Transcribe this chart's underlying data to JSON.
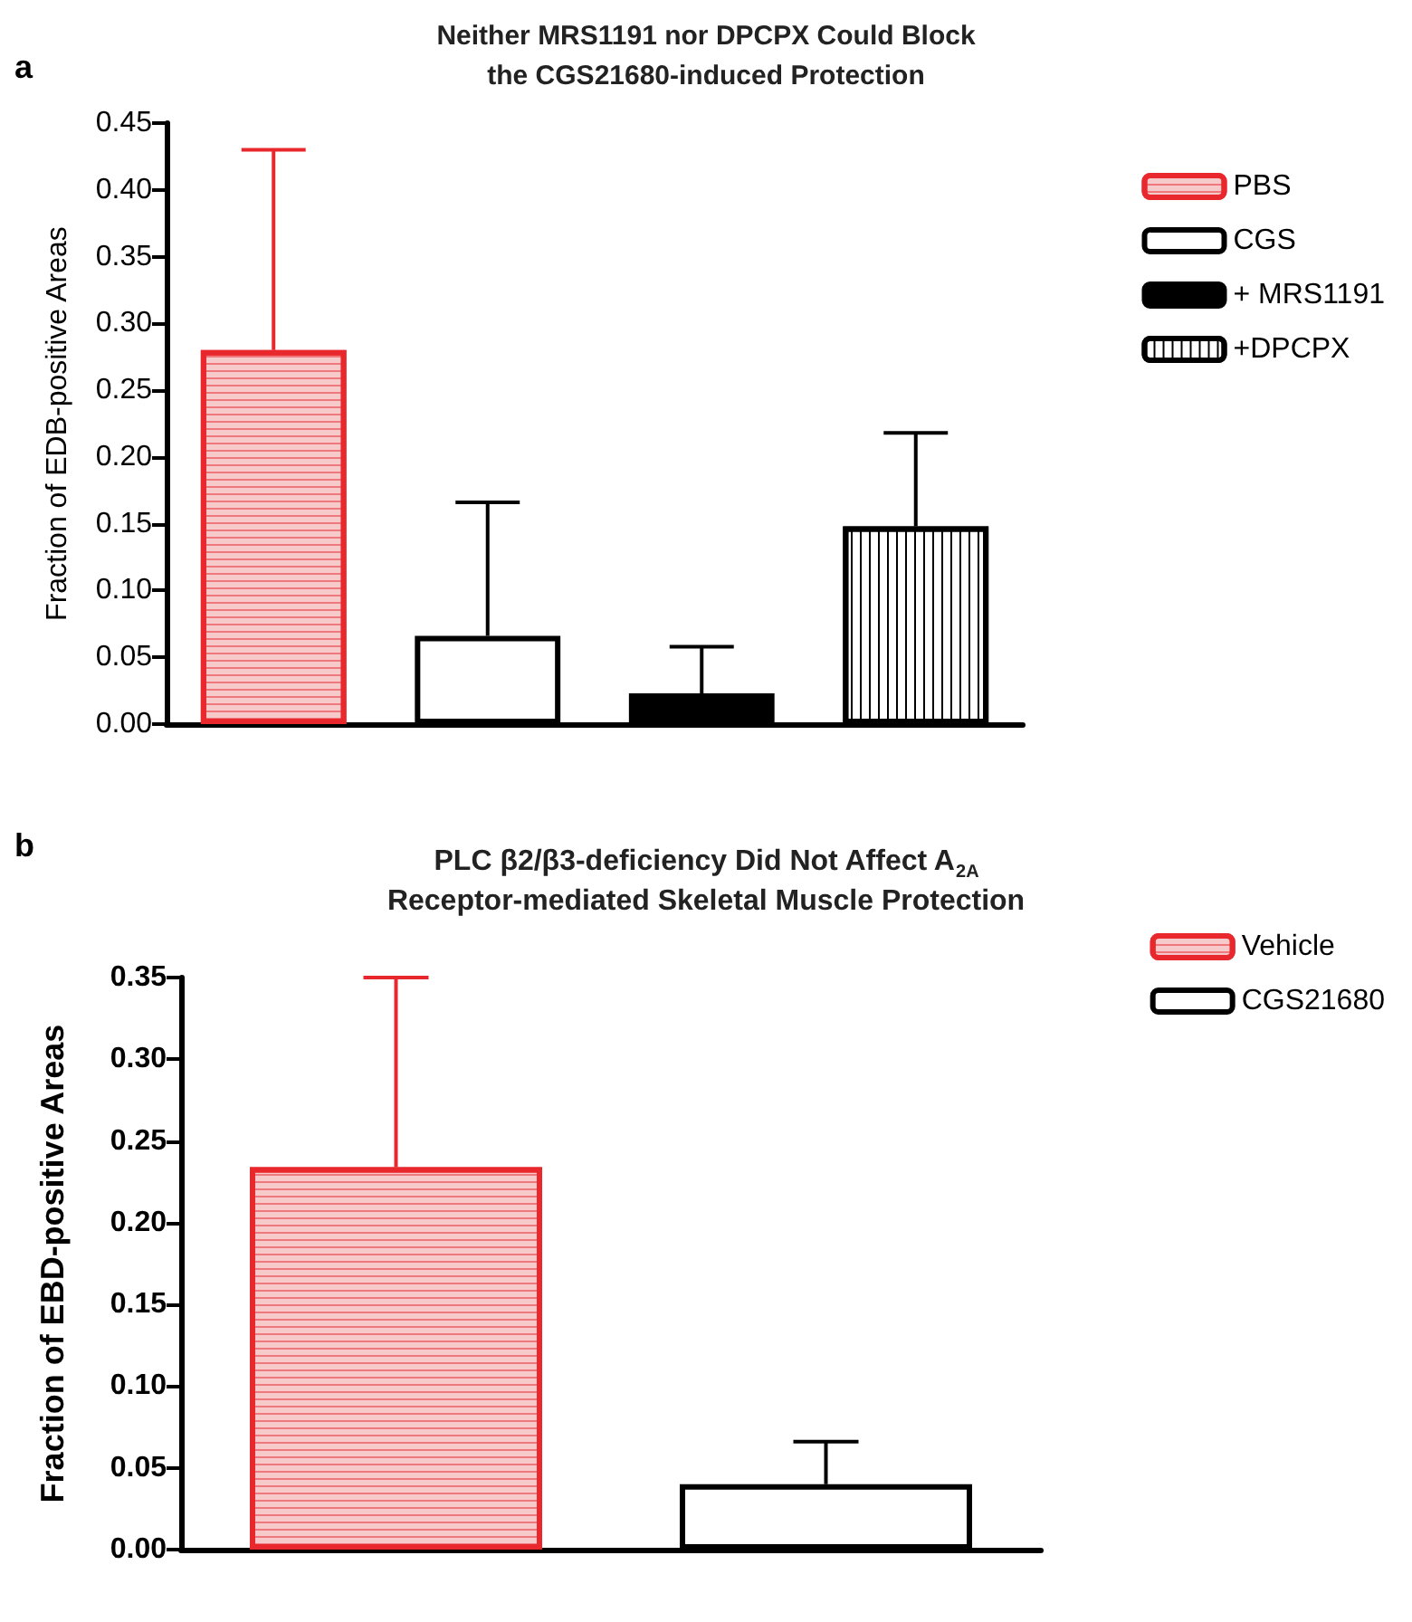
{
  "chart_data": [
    {
      "type": "bar",
      "title": "Neither MRS1191 nor DPCPX Could Block the CGS21680-induced Protection",
      "ylabel": "Fraction of EDB-positive Areas",
      "annotations": [
        "a"
      ],
      "categories": [
        null,
        null,
        null,
        null
      ],
      "series": [
        {
          "name": "PBS",
          "color": "#e8282d",
          "values": [
            0.28,
            null,
            null,
            null
          ],
          "errors": [
            [
              0.28,
              0.43
            ],
            null,
            null,
            null
          ]
        },
        {
          "name": "CGS",
          "color": "#000000",
          "values": [
            null,
            0.066,
            null,
            null
          ],
          "errors": [
            null,
            [
              0.066,
              0.166
            ],
            null,
            null
          ]
        },
        {
          "name": "+ MRS1191",
          "color": "#000000",
          "values": [
            null,
            null,
            0.023,
            null
          ],
          "errors": [
            null,
            null,
            [
              0.023,
              0.058
            ],
            null
          ]
        },
        {
          "name": "+DPCPX",
          "color": "#000000",
          "values": [
            null,
            null,
            null,
            0.148
          ],
          "errors": [
            null,
            null,
            null,
            [
              0.148,
              0.218
            ]
          ]
        }
      ],
      "ylim": [
        0,
        0.45
      ],
      "yticks": [
        {
          "value": 0,
          "label": "0.00"
        },
        {
          "value": 0.05,
          "label": "0.05"
        },
        {
          "value": 0.1,
          "label": "0.10"
        },
        {
          "value": 0.15,
          "label": "0.15"
        },
        {
          "value": 0.2,
          "label": "0.20"
        },
        {
          "value": 0.25,
          "label": "0.25"
        },
        {
          "value": 0.3,
          "label": "0.30"
        },
        {
          "value": 0.35,
          "label": "0.35"
        },
        {
          "value": 0.4,
          "label": "0.40"
        },
        {
          "value": 0.45,
          "label": "0.45"
        }
      ],
      "tick_labels": "y",
      "legend": "right",
      "grid": false
    },
    {
      "type": "bar",
      "title": "PLC β2/β3-deficiency Did Not Affect A$_{2A}$ Receptor-mediated Skeletal Muscle Protection",
      "ylabel": "Fraction of EBD-positive Areas",
      "annotations": [
        "b"
      ],
      "categories": [
        null,
        null
      ],
      "series": [
        {
          "name": "Vehicle",
          "color": "#e8282d",
          "values": [
            0.234,
            null
          ],
          "errors": [
            [
              0.234,
              0.35
            ],
            null
          ]
        },
        {
          "name": "CGS21680",
          "color": "#000000",
          "values": [
            null,
            0.04
          ],
          "errors": [
            null,
            [
              0.04,
              0.066
            ]
          ]
        }
      ],
      "ylim": [
        0,
        0.35
      ],
      "yticks": [
        {
          "value": 0,
          "label": "0.00"
        },
        {
          "value": 0.05,
          "label": "0.05"
        },
        {
          "value": 0.1,
          "label": "0.10"
        },
        {
          "value": 0.15,
          "label": "0.15"
        },
        {
          "value": 0.2,
          "label": "0.20"
        },
        {
          "value": 0.25,
          "label": "0.25"
        },
        {
          "value": 0.3,
          "label": "0.30"
        },
        {
          "value": 0.35,
          "label": "0.35"
        }
      ],
      "tick_labels": "y",
      "legend": "right",
      "grid": false
    }
  ]
}
